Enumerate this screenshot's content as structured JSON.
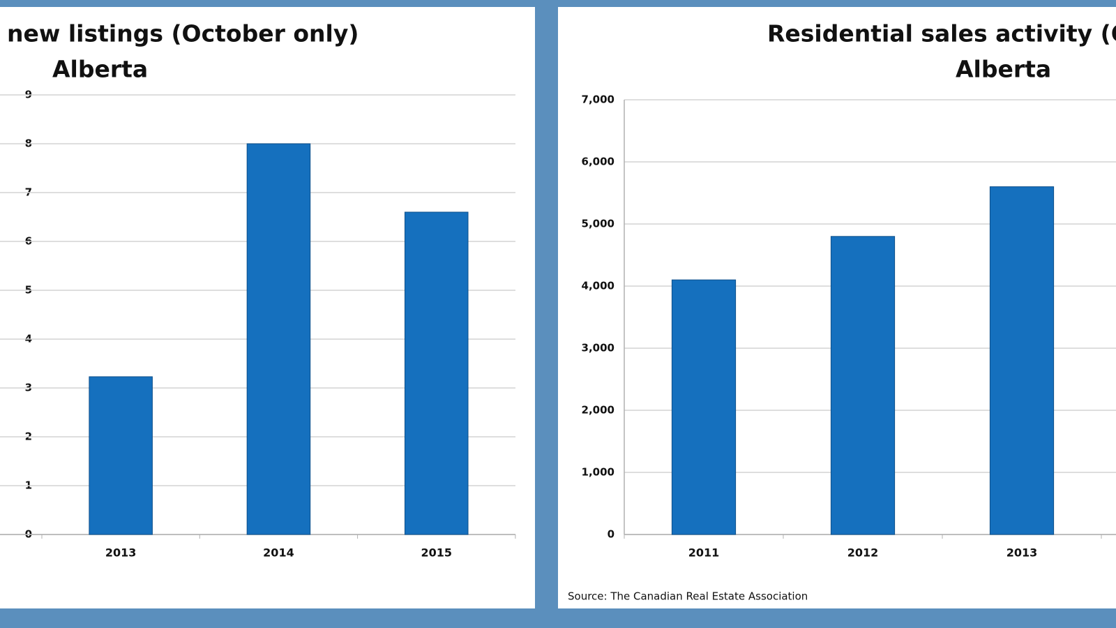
{
  "chart_data": [
    {
      "type": "bar",
      "title": "new listings (October only)",
      "subtitle": "Alberta",
      "categories": [
        "2013",
        "2014",
        "2015"
      ],
      "values": [
        3.23,
        8.0,
        6.6
      ],
      "color": "#1570be",
      "ylim": [
        0,
        9
      ],
      "yticks": [
        0,
        1,
        2,
        3,
        4,
        5,
        6,
        7,
        8,
        9
      ],
      "grid": true
    },
    {
      "type": "bar",
      "title": "Residential sales activity (Oc",
      "subtitle": "Alberta",
      "categories": [
        "2011",
        "2012",
        "2013"
      ],
      "values": [
        4100,
        4800,
        5600
      ],
      "color": "#1570be",
      "ylim": [
        0,
        7000
      ],
      "yticks": [
        0,
        {
          "value": 1000,
          "label": "1,000"
        },
        {
          "value": 2000,
          "label": "2,000"
        },
        {
          "value": 3000,
          "label": "3,000"
        },
        {
          "value": 4000,
          "label": "4,000"
        },
        {
          "value": 5000,
          "label": "5,000"
        },
        {
          "value": 6000,
          "label": "6,000"
        },
        {
          "value": 7000,
          "label": "7,000"
        }
      ],
      "grid": true,
      "source": "Source: The Canadian Real Estate Association"
    }
  ]
}
